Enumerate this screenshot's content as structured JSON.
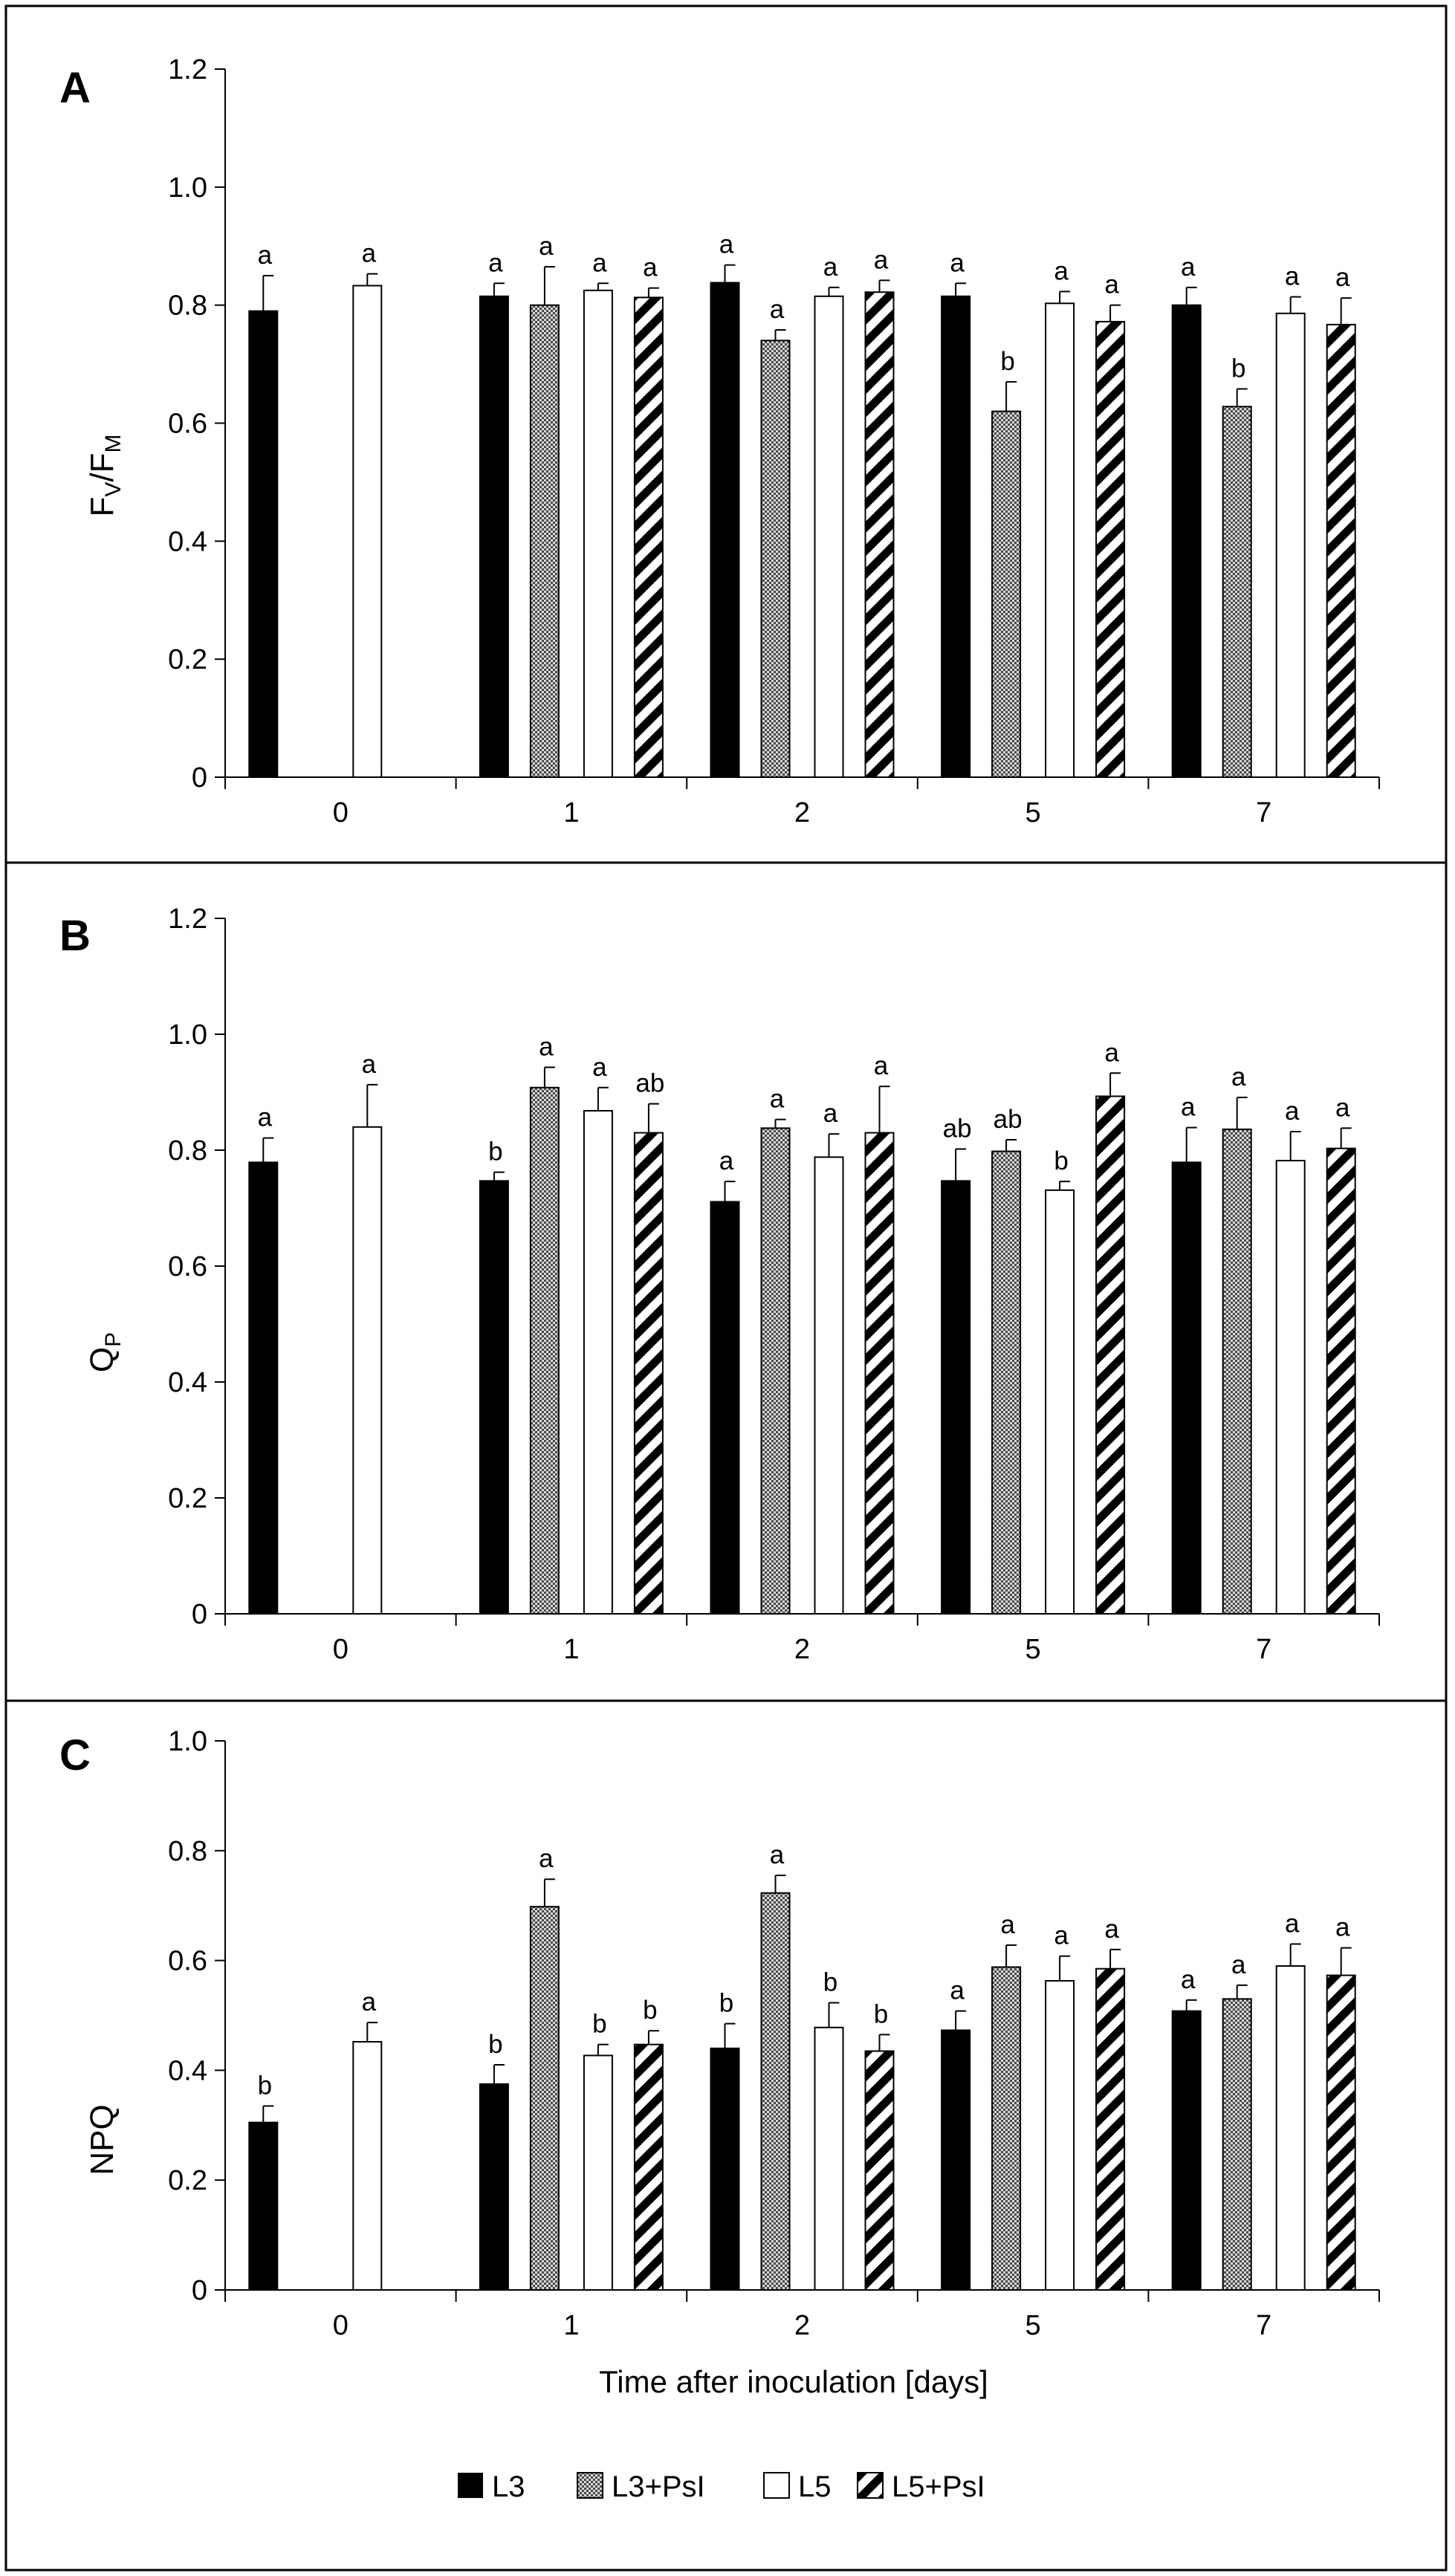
{
  "chart_data": [
    {
      "type": "bar",
      "panel": "A",
      "ylabel": "FV/FM",
      "ylim": [
        0,
        1.2
      ],
      "yticks": [
        "0",
        "0.2",
        "0.4",
        "0.6",
        "0.8",
        "1.0",
        "1.2"
      ],
      "xlabel": "",
      "categories": [
        "0",
        "1",
        "2",
        "5",
        "7"
      ],
      "series": [
        {
          "name": "L3",
          "values": [
            0.79,
            0.815,
            0.838,
            0.815,
            0.8
          ],
          "errors": [
            0.06,
            0.022,
            0.03,
            0.022,
            0.03
          ],
          "letters": [
            "a",
            "a",
            "a",
            "a",
            "a"
          ]
        },
        {
          "name": "L3+PsI",
          "values": [
            null,
            0.8,
            0.74,
            0.62,
            0.628
          ],
          "errors": [
            null,
            0.065,
            0.018,
            0.05,
            0.03
          ],
          "letters": [
            null,
            "a",
            "a",
            "b",
            "b"
          ]
        },
        {
          "name": "L5",
          "values": [
            0.833,
            0.825,
            0.815,
            0.803,
            0.786
          ],
          "errors": [
            0.02,
            0.012,
            0.015,
            0.02,
            0.028
          ],
          "letters": [
            "a",
            "a",
            "a",
            "a",
            "a"
          ]
        },
        {
          "name": "L5+PsI",
          "values": [
            null,
            0.813,
            0.822,
            0.772,
            0.767
          ],
          "errors": [
            null,
            0.016,
            0.02,
            0.028,
            0.045
          ],
          "letters": [
            null,
            "a",
            "a",
            "a",
            "a"
          ]
        }
      ]
    },
    {
      "type": "bar",
      "panel": "B",
      "ylabel": "QP",
      "ylim": [
        0,
        1.2
      ],
      "yticks": [
        "0",
        "0.2",
        "0.4",
        "0.6",
        "0.8",
        "1.0",
        "1.2"
      ],
      "xlabel": "",
      "categories": [
        "0",
        "1",
        "2",
        "5",
        "7"
      ],
      "series": [
        {
          "name": "L3",
          "values": [
            0.779,
            0.747,
            0.711,
            0.747,
            0.779
          ],
          "errors": [
            0.042,
            0.015,
            0.035,
            0.055,
            0.06
          ],
          "letters": [
            "a",
            "b",
            "a",
            "ab",
            "a"
          ]
        },
        {
          "name": "L3+PsI",
          "values": [
            null,
            0.908,
            0.838,
            0.798,
            0.836
          ],
          "errors": [
            null,
            0.035,
            0.015,
            0.02,
            0.055
          ],
          "letters": [
            null,
            "a",
            "a",
            "ab",
            "a"
          ]
        },
        {
          "name": "L5",
          "values": [
            0.84,
            0.868,
            0.788,
            0.731,
            0.782
          ],
          "errors": [
            0.073,
            0.04,
            0.04,
            0.015,
            0.05
          ],
          "letters": [
            "a",
            "a",
            "a",
            "b",
            "a"
          ]
        },
        {
          "name": "L5+PsI",
          "values": [
            null,
            0.83,
            0.83,
            0.893,
            0.803
          ],
          "errors": [
            null,
            0.05,
            0.08,
            0.04,
            0.035
          ],
          "letters": [
            null,
            "ab",
            "a",
            "a",
            "a"
          ]
        }
      ]
    },
    {
      "type": "bar",
      "panel": "C",
      "ylabel": "NPQ",
      "ylim": [
        0,
        1.0
      ],
      "yticks": [
        "0",
        "0.2",
        "0.4",
        "0.6",
        "0.8",
        "1.0"
      ],
      "xlabel": "Time after inoculation [days]",
      "categories": [
        "0",
        "1",
        "2",
        "5",
        "7"
      ],
      "series": [
        {
          "name": "L3",
          "values": [
            0.305,
            0.375,
            0.44,
            0.473,
            0.508
          ],
          "errors": [
            0.03,
            0.035,
            0.045,
            0.035,
            0.02
          ],
          "letters": [
            "b",
            "b",
            "b",
            "a",
            "a"
          ]
        },
        {
          "name": "L3+PsI",
          "values": [
            null,
            0.698,
            0.723,
            0.588,
            0.53
          ],
          "errors": [
            null,
            0.05,
            0.032,
            0.04,
            0.025
          ],
          "letters": [
            null,
            "a",
            "a",
            "a",
            "a"
          ]
        },
        {
          "name": "L5",
          "values": [
            0.452,
            0.427,
            0.478,
            0.563,
            0.59
          ],
          "errors": [
            0.035,
            0.02,
            0.045,
            0.045,
            0.04
          ],
          "letters": [
            "a",
            "b",
            "b",
            "a",
            "a"
          ]
        },
        {
          "name": "L5+PsI",
          "values": [
            null,
            0.447,
            0.435,
            0.585,
            0.573
          ],
          "errors": [
            null,
            0.025,
            0.03,
            0.035,
            0.05
          ],
          "letters": [
            null,
            "b",
            "b",
            "a",
            "a"
          ]
        }
      ]
    }
  ],
  "legend": {
    "position": "bottom-center",
    "entries": [
      "L3",
      "L3+PsI",
      "L5",
      "L5+PsI"
    ]
  },
  "series_style": {
    "L3": "solid-black",
    "L3+PsI": "dotted-gray",
    "L5": "white",
    "L5+PsI": "diagonal-stripes"
  },
  "colors": {
    "L3": "#000000",
    "L3+PsI": "#8c8c8c",
    "L5": "#ffffff",
    "L5+PsI": "#000000",
    "border": "#000000"
  }
}
